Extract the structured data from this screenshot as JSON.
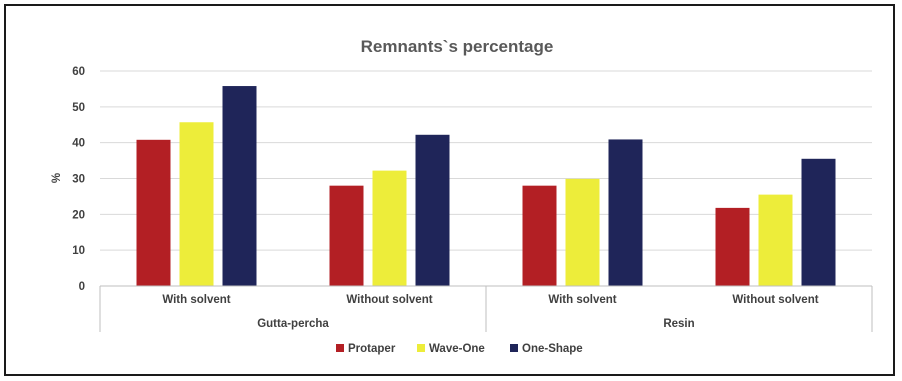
{
  "chart_data": {
    "type": "bar",
    "title": "Remnants`s percentage",
    "ylabel": "%",
    "xlabel": "",
    "ylim": [
      0,
      60
    ],
    "yticks": [
      0,
      10,
      20,
      30,
      40,
      50,
      60
    ],
    "grid": true,
    "legend_position": "bottom",
    "categories": [
      "With solvent",
      "Without solvent",
      "With solvent",
      "Without solvent"
    ],
    "groups": [
      {
        "label": "Gutta-percha",
        "categories": [
          0,
          1
        ]
      },
      {
        "label": "Resin",
        "categories": [
          2,
          3
        ]
      }
    ],
    "series": [
      {
        "name": "Protaper",
        "color": "#b31f24",
        "values": [
          40.8,
          28,
          28,
          21.8
        ]
      },
      {
        "name": "Wave-One",
        "color": "#eded3a",
        "values": [
          45.7,
          32.2,
          29.9,
          25.5
        ]
      },
      {
        "name": "One-Shape",
        "color": "#1f2559",
        "values": [
          55.8,
          42.2,
          40.9,
          35.5
        ]
      }
    ]
  }
}
